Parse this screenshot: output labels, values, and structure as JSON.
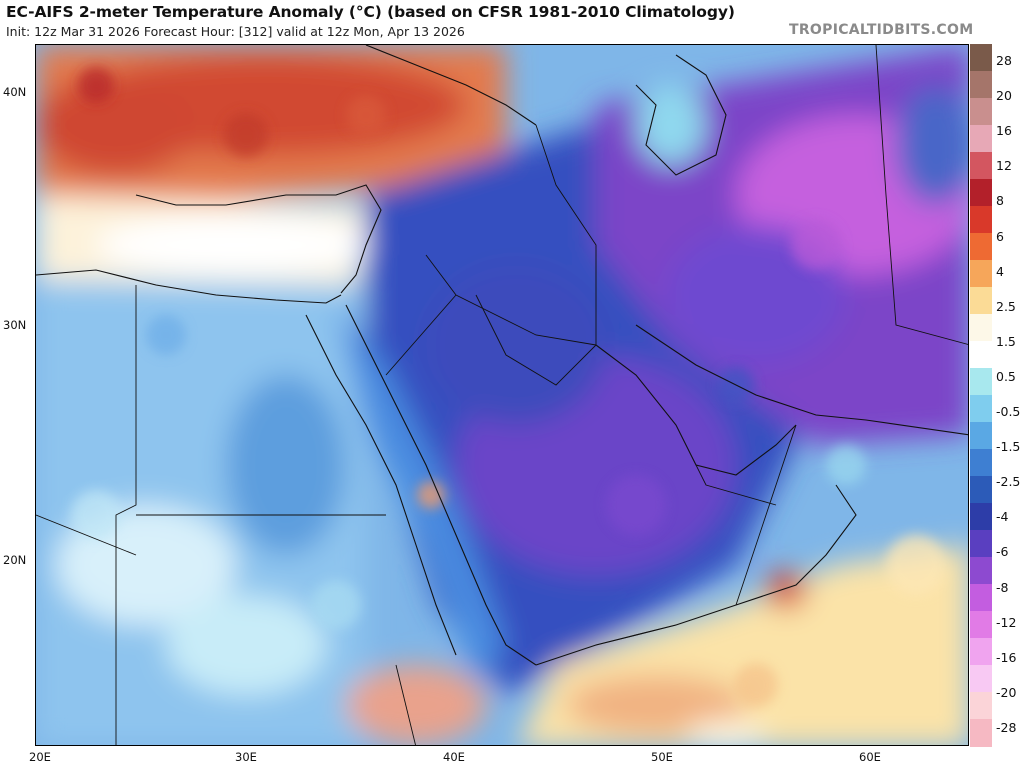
{
  "header": {
    "title": "EC-AIFS 2-meter Temperature Anomaly (°C) (based on CFSR 1981-2010 Climatology)",
    "subtitle": "Init: 12z Mar 31 2026   Forecast Hour: [312]   valid at 12z Mon, Apr 13 2026",
    "brand": "TROPICALTIDBITS.COM"
  },
  "map": {
    "lat_labels": [
      "40N",
      "30N",
      "20N"
    ],
    "lon_labels": [
      "20E",
      "30E",
      "40E",
      "50E",
      "60E"
    ]
  },
  "colorbar": {
    "labels": [
      "28",
      "20",
      "16",
      "12",
      "8",
      "6",
      "4",
      "2.5",
      "1.5",
      "0.5",
      "-0.5",
      "-1.5",
      "-2.5",
      "-4",
      "-6",
      "-8",
      "-12",
      "-16",
      "-20",
      "-28"
    ],
    "colors": [
      "#7a5a4a",
      "#a5756a",
      "#c98f8e",
      "#e7a8b6",
      "#d35660",
      "#b3202a",
      "#d9392a",
      "#ee6a33",
      "#f6a65a",
      "#fbdb96",
      "#fdf8e8",
      "#ffffff",
      "#a8e8ee",
      "#7fcdee",
      "#5aa8e4",
      "#3e7fd2",
      "#2c5bb8",
      "#2d3da8",
      "#5a3fc0",
      "#8d4ad0",
      "#c35de0",
      "#e17be6",
      "#f0a4ef",
      "#f8c9f3",
      "#fbd4d8",
      "#f6b9c3"
    ]
  }
}
